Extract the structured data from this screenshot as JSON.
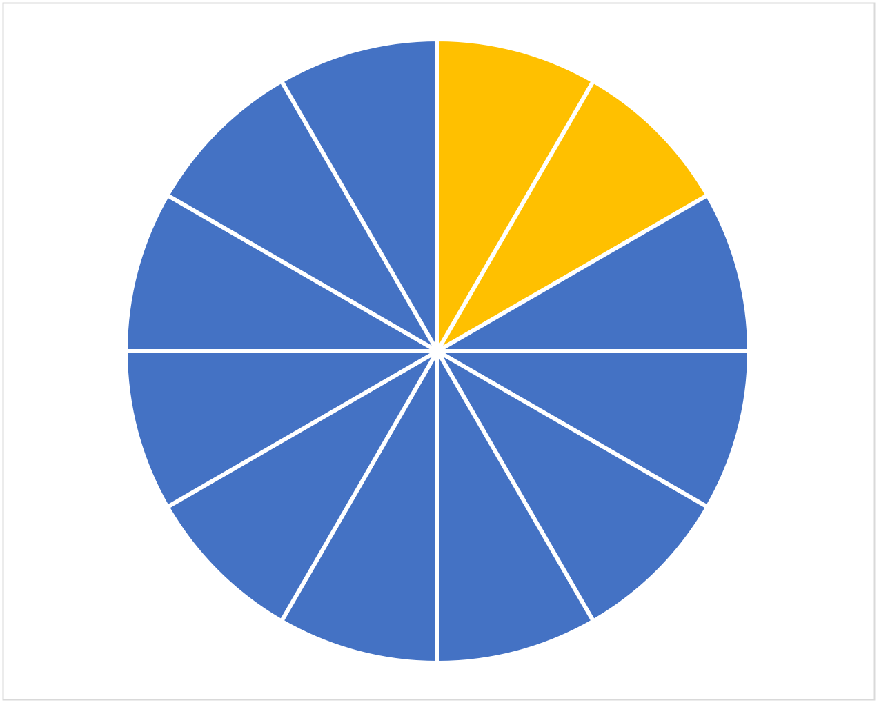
{
  "chart_data": {
    "type": "pie",
    "values": [
      1,
      1,
      1,
      1,
      1,
      1,
      1,
      1,
      1,
      1,
      1,
      1
    ],
    "colors": [
      "#ffc000",
      "#ffc000",
      "#4472c4",
      "#4472c4",
      "#4472c4",
      "#4472c4",
      "#4472c4",
      "#4472c4",
      "#4472c4",
      "#4472c4",
      "#4472c4",
      "#4472c4"
    ],
    "start_angle": 0,
    "direction": "clockwise"
  }
}
